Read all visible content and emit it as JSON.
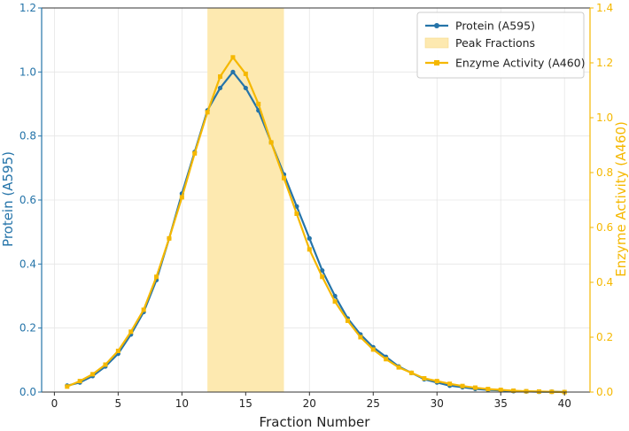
{
  "chart_data": {
    "type": "line",
    "title": "",
    "xlabel": "Fraction Number",
    "ylabel_left": "Protein (A595)",
    "ylabel_right": "Enzyme Activity (A460)",
    "xlim": [
      -1,
      42
    ],
    "ylim_left": [
      0,
      1.2
    ],
    "ylim_right": [
      0,
      1.4
    ],
    "x_ticks": [
      0,
      5,
      10,
      15,
      20,
      25,
      30,
      35,
      40
    ],
    "y_ticks_left": [
      0.0,
      0.2,
      0.4,
      0.6,
      0.8,
      1.0,
      1.2
    ],
    "y_ticks_right": [
      0.0,
      0.2,
      0.4,
      0.6,
      0.8,
      1.0,
      1.2,
      1.4
    ],
    "y_tick_labels_left": [
      "0.0",
      "0.2",
      "0.4",
      "0.6",
      "0.8",
      "1.0",
      "1.2"
    ],
    "y_tick_labels_right": [
      "0.0",
      "0.2",
      "0.4",
      "0.6",
      "0.8",
      "1.0",
      "1.2",
      "1.4"
    ],
    "grid": true,
    "legend_position": "top-right",
    "shaded_region": {
      "name": "Peak Fractions",
      "x_start": 12,
      "x_end": 18,
      "color": "#fde9b0"
    },
    "x": [
      1,
      2,
      3,
      4,
      5,
      6,
      7,
      8,
      9,
      10,
      11,
      12,
      13,
      14,
      15,
      16,
      17,
      18,
      19,
      20,
      21,
      22,
      23,
      24,
      25,
      26,
      27,
      28,
      29,
      30,
      31,
      32,
      33,
      34,
      35,
      36,
      37,
      38,
      39,
      40
    ],
    "series": [
      {
        "name": "Protein (A595)",
        "axis": "left",
        "color": "#2574a9",
        "marker": "circle",
        "values": [
          0.02,
          0.03,
          0.05,
          0.08,
          0.12,
          0.18,
          0.25,
          0.35,
          0.48,
          0.62,
          0.75,
          0.88,
          0.95,
          1.0,
          0.95,
          0.88,
          0.78,
          0.68,
          0.58,
          0.48,
          0.38,
          0.3,
          0.23,
          0.18,
          0.14,
          0.11,
          0.08,
          0.06,
          0.04,
          0.03,
          0.02,
          0.015,
          0.01,
          0.007,
          0.005,
          0.003,
          0.002,
          0.001,
          0.001,
          0.0
        ]
      },
      {
        "name": "Enzyme Activity (A460)",
        "axis": "right",
        "color": "#f5b800",
        "marker": "square",
        "values": [
          0.02,
          0.04,
          0.065,
          0.1,
          0.15,
          0.22,
          0.3,
          0.42,
          0.56,
          0.71,
          0.87,
          1.02,
          1.15,
          1.22,
          1.16,
          1.05,
          0.91,
          0.78,
          0.65,
          0.52,
          0.42,
          0.33,
          0.26,
          0.2,
          0.155,
          0.12,
          0.09,
          0.07,
          0.05,
          0.04,
          0.03,
          0.022,
          0.016,
          0.011,
          0.008,
          0.005,
          0.003,
          0.002,
          0.001,
          0.0
        ]
      }
    ]
  }
}
